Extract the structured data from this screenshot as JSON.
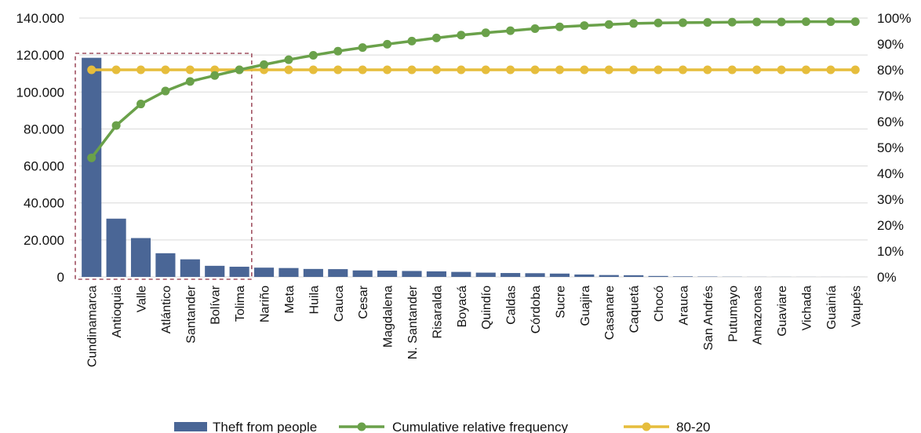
{
  "chart_data": {
    "type": "bar",
    "categories": [
      "Cundinamarca",
      "Antioquia",
      "Valle",
      "Atlántico",
      "Santander",
      "Bolívar",
      "Tolima",
      "Nariño",
      "Meta",
      "Huila",
      "Cauca",
      "Cesar",
      "Magdalena",
      "N. Santander",
      "Risaralda",
      "Boyacá",
      "Quindío",
      "Caldas",
      "Córdoba",
      "Sucre",
      "Guajira",
      "Casanare",
      "Caquetá",
      "Chocó",
      "Arauca",
      "San Andrés",
      "Putumayo",
      "Amazonas",
      "Guaviare",
      "Vichada",
      "Guainía",
      "Vaupés"
    ],
    "y_ticks": [
      "0",
      "20.000",
      "40.000",
      "60.000",
      "80.000",
      "100.000",
      "120.000",
      "140.000"
    ],
    "y2_ticks": [
      "0%",
      "10%",
      "20%",
      "30%",
      "40%",
      "50%",
      "60%",
      "70%",
      "80%",
      "90%",
      "100%"
    ],
    "ylim": [
      0,
      140000
    ],
    "y2lim": [
      0,
      100
    ],
    "grid": true,
    "legend_position": "bottom",
    "highlight_box": {
      "from_category": "Cundinamarca",
      "to_category": "Tolima",
      "color": "#a05060"
    },
    "series": [
      {
        "name": "Theft from people",
        "kind": "bar",
        "axis": "left",
        "color": "#4a6696",
        "values": [
          118500,
          31500,
          21000,
          12800,
          9500,
          6000,
          5500,
          5000,
          4800,
          4300,
          4200,
          3500,
          3400,
          3200,
          3000,
          2700,
          2300,
          2100,
          2000,
          1800,
          1300,
          1000,
          900,
          500,
          300,
          200,
          100,
          50,
          40,
          30,
          20,
          10
        ]
      },
      {
        "name": "Cumulative relative frequency",
        "kind": "line",
        "axis": "right",
        "color": "#6aa14a",
        "values": [
          46,
          58.5,
          66.8,
          71.8,
          75.5,
          77.8,
          80,
          82,
          83.9,
          85.6,
          87.2,
          88.6,
          89.9,
          91.1,
          92.3,
          93.4,
          94.3,
          95.1,
          95.9,
          96.6,
          97.1,
          97.5,
          97.9,
          98.1,
          98.2,
          98.3,
          98.4,
          98.5,
          98.5,
          98.6,
          98.6,
          98.6
        ]
      },
      {
        "name": "80-20",
        "kind": "line",
        "axis": "right",
        "color": "#e6bd3c",
        "values": [
          80,
          80,
          80,
          80,
          80,
          80,
          80,
          80,
          80,
          80,
          80,
          80,
          80,
          80,
          80,
          80,
          80,
          80,
          80,
          80,
          80,
          80,
          80,
          80,
          80,
          80,
          80,
          80,
          80,
          80,
          80,
          80
        ]
      }
    ]
  }
}
